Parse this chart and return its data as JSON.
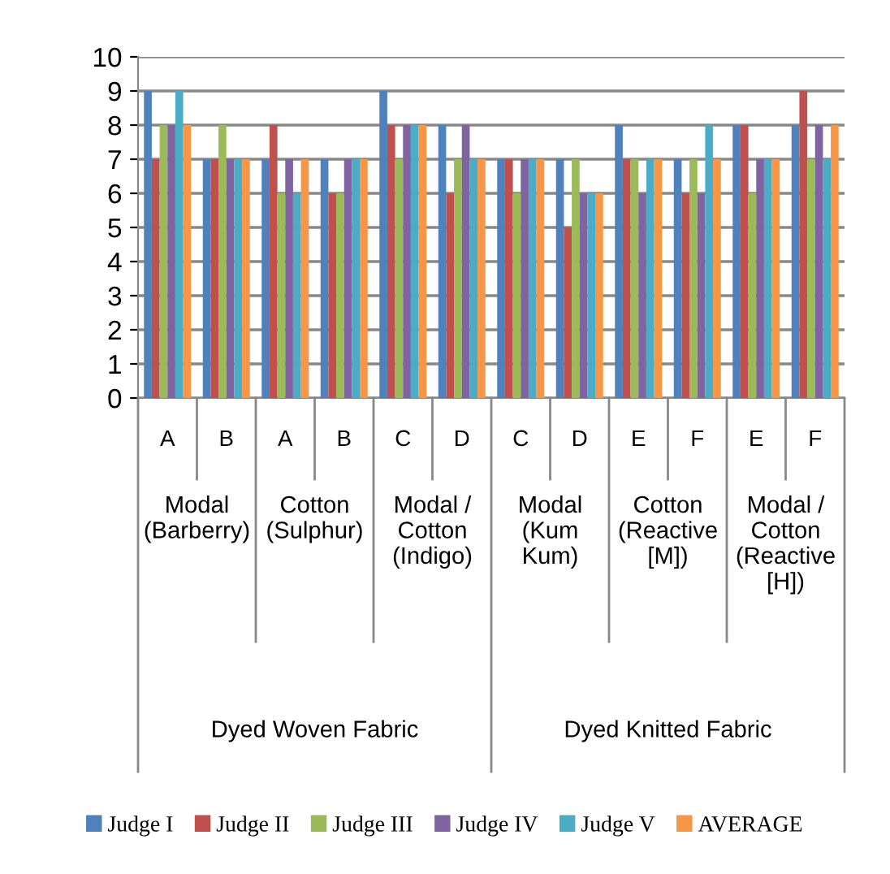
{
  "chart_data": {
    "type": "bar",
    "categories": [
      "A",
      "B",
      "A",
      "B",
      "C",
      "D",
      "C",
      "D",
      "E",
      "F",
      "E",
      "F"
    ],
    "series": [
      {
        "name": "Judge I",
        "color": "#4f81bd",
        "values": [
          9,
          7,
          7,
          7,
          9,
          8,
          7,
          7,
          8,
          7,
          8,
          8
        ]
      },
      {
        "name": "Judge II",
        "color": "#c0504d",
        "values": [
          7,
          7,
          8,
          6,
          8,
          6,
          7,
          5,
          7,
          6,
          8,
          9
        ]
      },
      {
        "name": "Judge III",
        "color": "#9bbb59",
        "values": [
          8,
          8,
          6,
          6,
          7,
          7,
          6,
          7,
          7,
          7,
          6,
          7
        ]
      },
      {
        "name": "Judge IV",
        "color": "#8064a2",
        "values": [
          8,
          7,
          7,
          7,
          8,
          8,
          7,
          6,
          6,
          6,
          7,
          8
        ]
      },
      {
        "name": "Judge V",
        "color": "#4bacc6",
        "values": [
          9,
          7,
          6,
          7,
          8,
          7,
          7,
          6,
          7,
          8,
          7,
          7
        ]
      },
      {
        "name": "AVERAGE",
        "color": "#f79646",
        "values": [
          8,
          7,
          7,
          7,
          8,
          7,
          7,
          6,
          7,
          7,
          7,
          8
        ]
      }
    ],
    "annotations": [
      "Modal\n(Barberry)",
      "Cotton\n(Sulphur)",
      "Modal /\nCotton\n(Indigo)",
      "Modal\n(Kum\nKum)",
      "Cotton\n(Reactive\n[M])",
      "Modal /\nCotton\n(Reactive\n[H])",
      "Dyed Woven Fabric",
      "Dyed Knitted Fabric"
    ],
    "ylim": [
      0,
      10
    ],
    "yticks": [
      0,
      1,
      2,
      3,
      4,
      5,
      6,
      7,
      8,
      9,
      10
    ],
    "grid": "y",
    "legend": "bottom"
  }
}
